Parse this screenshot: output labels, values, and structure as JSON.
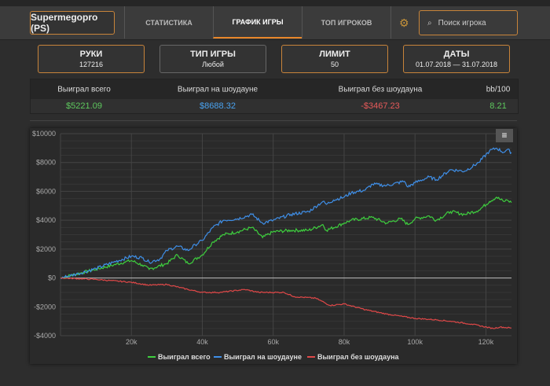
{
  "nav": {
    "player": "Supermegopro (PS)",
    "tabs": [
      {
        "label": "СТАТИСТИКА",
        "active": false
      },
      {
        "label": "ГРАФИК ИГРЫ",
        "active": true
      },
      {
        "label": "ТОП ИГРОКОВ",
        "active": false
      }
    ],
    "search_placeholder": "Поиск игрока"
  },
  "filters": [
    {
      "title": "РУКИ",
      "value": "127216"
    },
    {
      "title": "ТИП ИГРЫ",
      "value": "Любой"
    },
    {
      "title": "ЛИМИТ",
      "value": "50"
    },
    {
      "title": "ДАТЫ",
      "value": "01.07.2018 — 31.07.2018"
    }
  ],
  "stats": {
    "headers": [
      "Выиграл всего",
      "Выиграл на шоудауне",
      "Выиграл без шоудауна",
      "bb/100"
    ],
    "values": [
      "$5221.09",
      "$8688.32",
      "-$3467.23",
      "8.21"
    ],
    "colors": [
      "#5ec95e",
      "#4aa3f0",
      "#e85a5a",
      "#5ec95e"
    ]
  },
  "chart_data": {
    "type": "line",
    "title": "",
    "xlabel": "",
    "ylabel": "",
    "xlim": [
      0,
      127216
    ],
    "ylim": [
      -4000,
      10000
    ],
    "xticks": [
      20000,
      40000,
      60000,
      80000,
      100000,
      120000
    ],
    "xtick_labels": [
      "20k",
      "40k",
      "60k",
      "80k",
      "100k",
      "120k"
    ],
    "yticks": [
      -4000,
      -2000,
      0,
      2000,
      4000,
      6000,
      8000,
      10000
    ],
    "ytick_labels": [
      "-$4000",
      "-$2000",
      "$0",
      "$2000",
      "$4000",
      "$6000",
      "$8000",
      "$10000"
    ],
    "legend_position": "bottom",
    "menu_icon": "hamburger-icon",
    "series": [
      {
        "name": "Выиграл всего",
        "color": "#3ecf3e",
        "x": [
          0,
          10,
          15,
          18,
          20,
          23,
          25,
          30,
          33,
          36,
          40,
          43,
          46,
          50,
          54,
          57,
          60,
          65,
          70,
          74,
          75,
          80,
          82,
          88,
          92,
          96,
          98,
          100,
          104,
          106,
          110,
          114,
          118,
          121,
          123,
          125,
          126,
          127.2
        ],
        "y": [
          0,
          600,
          900,
          1100,
          1200,
          900,
          600,
          1000,
          1600,
          1000,
          1600,
          2500,
          3000,
          3200,
          3500,
          2800,
          3200,
          3300,
          3300,
          3700,
          3300,
          3800,
          4000,
          4200,
          3800,
          4100,
          3700,
          4100,
          4300,
          4000,
          4600,
          4400,
          4700,
          5300,
          5600,
          5300,
          5400,
          5221
        ]
      },
      {
        "name": "Выиграл на шоудауне",
        "color": "#3f8fe8",
        "x": [
          0,
          5,
          10,
          15,
          20,
          23,
          25,
          28,
          30,
          33,
          36,
          38,
          40,
          43,
          46,
          50,
          54,
          57,
          60,
          65,
          70,
          74,
          75,
          77,
          80,
          82,
          86,
          88,
          92,
          97,
          98,
          100,
          104,
          106,
          110,
          114,
          118,
          121,
          123,
          125,
          126,
          127.2
        ],
        "y": [
          0,
          300,
          650,
          1100,
          1500,
          1400,
          1100,
          1300,
          1900,
          2200,
          1900,
          2300,
          2600,
          3500,
          4000,
          4100,
          4400,
          3800,
          4000,
          4400,
          4600,
          5300,
          5100,
          5400,
          5600,
          5900,
          6100,
          6500,
          6400,
          6700,
          6300,
          6600,
          7000,
          6800,
          7500,
          7400,
          8000,
          8800,
          9000,
          8700,
          8900,
          8688
        ]
      },
      {
        "name": "Выиграл без шоудауна",
        "color": "#e04848",
        "x": [
          0,
          10,
          20,
          25,
          30,
          36,
          40,
          45,
          52,
          56,
          63,
          66,
          72,
          76,
          80,
          86,
          92,
          100,
          106,
          110,
          116,
          122,
          124,
          127.2
        ],
        "y": [
          0,
          -100,
          -300,
          -500,
          -450,
          -800,
          -1000,
          -1000,
          -800,
          -1000,
          -1000,
          -1300,
          -1400,
          -1900,
          -1800,
          -2200,
          -2500,
          -2800,
          -2900,
          -3000,
          -3200,
          -3500,
          -3400,
          -3467
        ]
      }
    ]
  }
}
